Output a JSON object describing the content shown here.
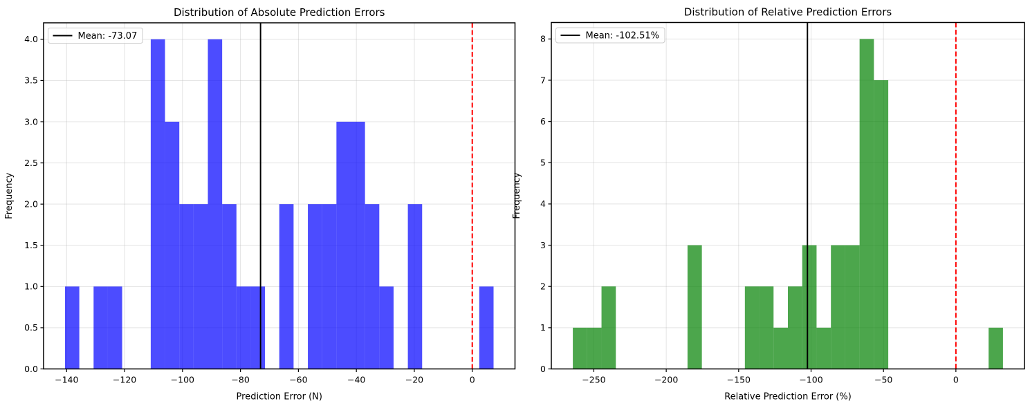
{
  "figure": {
    "background_color": "#ffffff",
    "text_color": "#000000",
    "grid_color": "#b0b0b0",
    "grid_alpha": 0.3,
    "spine_color": "#000000"
  },
  "chart_data": [
    {
      "type": "bar",
      "subtype": "histogram",
      "title": "Distribution of Absolute Prediction Errors",
      "xlabel": "Prediction Error (N)",
      "ylabel": "Frequency",
      "legend": {
        "label": "Mean: -73.07",
        "position": "upper left",
        "line_color": "#000000"
      },
      "bar_color": "#0000ff",
      "bar_alpha": 0.7,
      "bins": {
        "start": -140.55,
        "width": 4.93,
        "counts": [
          1,
          0,
          1,
          1,
          0,
          0,
          4,
          3,
          2,
          2,
          4,
          2,
          1,
          1,
          0,
          2,
          0,
          2,
          2,
          3,
          3,
          2,
          1,
          0,
          2,
          0,
          0,
          0,
          0,
          1
        ]
      },
      "total_samples": 40,
      "mean_value": -73.07,
      "vlines": [
        {
          "name": "mean-line",
          "x": -73.07,
          "color": "#000000",
          "style": "solid",
          "width": 2
        },
        {
          "name": "zero-reference-line",
          "x": 0,
          "color": "#ff0000",
          "style": "dashed",
          "width": 2
        }
      ],
      "xlim": [
        -147.95,
        14.75
      ],
      "ylim": [
        0,
        4.2
      ],
      "xticks": [
        -140,
        -120,
        -100,
        -80,
        -60,
        -40,
        -20,
        0
      ],
      "yticks": [
        0.0,
        0.5,
        1.0,
        1.5,
        2.0,
        2.5,
        3.0,
        3.5,
        4.0
      ],
      "ytick_decimals": 1,
      "grid": true
    },
    {
      "type": "bar",
      "subtype": "histogram",
      "title": "Distribution of Relative Prediction Errors",
      "xlabel": "Relative Prediction Error (%)",
      "ylabel": "Frequency",
      "legend": {
        "label": "Mean: -102.51%",
        "position": "upper left",
        "line_color": "#000000"
      },
      "bar_color": "#008000",
      "bar_alpha": 0.7,
      "bins": {
        "start": -264.5,
        "width": 9.9,
        "counts": [
          1,
          1,
          2,
          0,
          0,
          0,
          0,
          0,
          3,
          0,
          0,
          0,
          2,
          2,
          1,
          2,
          3,
          1,
          3,
          3,
          8,
          7,
          0,
          0,
          0,
          0,
          0,
          0,
          0,
          1
        ]
      },
      "total_samples": 40,
      "mean_value": -102.51,
      "vlines": [
        {
          "name": "mean-line",
          "x": -102.51,
          "color": "#000000",
          "style": "solid",
          "width": 2
        },
        {
          "name": "zero-reference-line",
          "x": 0,
          "color": "#ff0000",
          "style": "dashed",
          "width": 2
        }
      ],
      "xlim": [
        -279.35,
        47.35
      ],
      "ylim": [
        0,
        8.4
      ],
      "xticks": [
        -250,
        -200,
        -150,
        -100,
        -50,
        0
      ],
      "yticks": [
        0,
        1,
        2,
        3,
        4,
        5,
        6,
        7,
        8
      ],
      "ytick_decimals": 0,
      "grid": true
    }
  ]
}
